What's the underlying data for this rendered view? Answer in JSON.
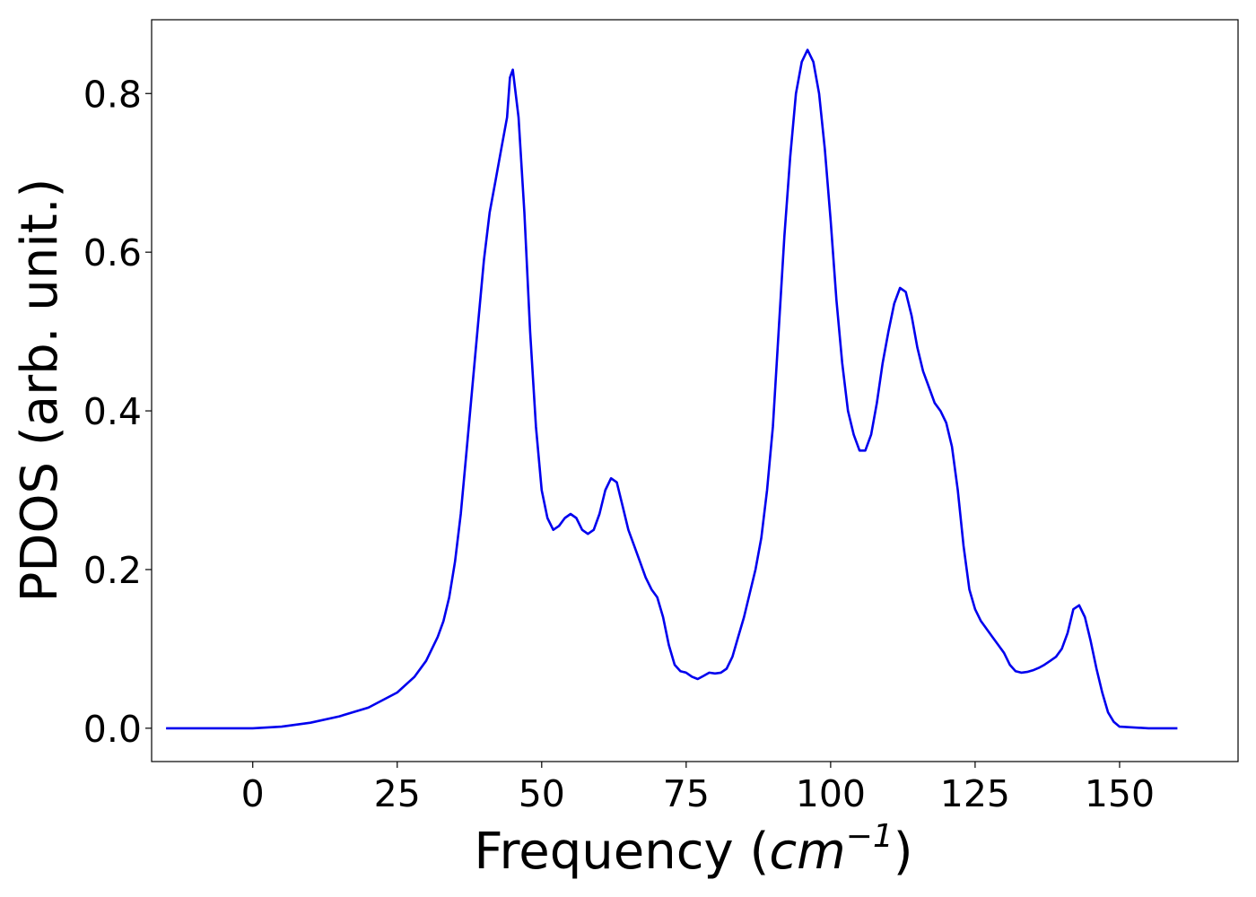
{
  "chart_data": {
    "type": "line",
    "title": "",
    "xlabel": "Frequency (",
    "xlabel_math": "cm",
    "xlabel_sup": "−1",
    "xlabel_end": ")",
    "ylabel": "PDOS (arb. unit.)",
    "xlim": [
      -17.5,
      170.5
    ],
    "ylim": [
      -0.042,
      0.893
    ],
    "xticks": [
      0,
      25,
      50,
      75,
      100,
      125,
      150
    ],
    "yticks": [
      0.0,
      0.2,
      0.4,
      0.6,
      0.8
    ],
    "ytick_labels": [
      "0.0",
      "0.2",
      "0.4",
      "0.6",
      "0.8"
    ],
    "grid": false,
    "legend": "none",
    "series": [
      {
        "color": "#0000ee",
        "x": [
          -15,
          -5,
          0,
          5,
          10,
          15,
          20,
          25,
          28,
          30,
          32,
          33,
          34,
          35,
          36,
          37,
          38,
          39,
          40,
          41,
          42,
          43,
          44,
          44.5,
          45,
          45.5,
          46,
          47,
          48,
          49,
          50,
          51,
          52,
          53,
          54,
          55,
          56,
          57,
          58,
          59,
          60,
          61,
          62,
          63,
          64,
          65,
          66,
          67,
          68,
          69,
          70,
          71,
          72,
          73,
          74,
          75,
          76,
          77,
          78,
          79,
          80,
          81,
          82,
          83,
          84,
          85,
          86,
          87,
          88,
          89,
          90,
          91,
          92,
          93,
          94,
          95,
          96,
          97,
          98,
          99,
          100,
          101,
          102,
          103,
          104,
          105,
          106,
          107,
          108,
          109,
          110,
          111,
          112,
          113,
          114,
          115,
          116,
          117,
          118,
          119,
          120,
          121,
          122,
          123,
          124,
          125,
          126,
          127,
          128,
          129,
          130,
          131,
          132,
          133,
          134,
          135,
          136,
          137,
          138,
          139,
          140,
          141,
          142,
          143,
          144,
          145,
          146,
          147,
          148,
          149,
          150,
          155,
          160
        ],
        "y": [
          0.0,
          0.0,
          0.0,
          0.002,
          0.007,
          0.015,
          0.026,
          0.045,
          0.065,
          0.085,
          0.115,
          0.135,
          0.165,
          0.21,
          0.27,
          0.35,
          0.43,
          0.51,
          0.59,
          0.65,
          0.69,
          0.73,
          0.77,
          0.82,
          0.83,
          0.8,
          0.77,
          0.65,
          0.5,
          0.38,
          0.3,
          0.265,
          0.25,
          0.255,
          0.265,
          0.27,
          0.265,
          0.25,
          0.245,
          0.25,
          0.27,
          0.3,
          0.315,
          0.31,
          0.28,
          0.25,
          0.23,
          0.21,
          0.19,
          0.175,
          0.165,
          0.14,
          0.105,
          0.08,
          0.072,
          0.07,
          0.065,
          0.062,
          0.066,
          0.07,
          0.069,
          0.07,
          0.075,
          0.09,
          0.115,
          0.14,
          0.17,
          0.2,
          0.24,
          0.3,
          0.38,
          0.5,
          0.62,
          0.72,
          0.8,
          0.84,
          0.855,
          0.84,
          0.8,
          0.73,
          0.64,
          0.54,
          0.46,
          0.4,
          0.37,
          0.35,
          0.35,
          0.37,
          0.41,
          0.46,
          0.5,
          0.535,
          0.555,
          0.55,
          0.52,
          0.48,
          0.45,
          0.43,
          0.41,
          0.4,
          0.385,
          0.355,
          0.3,
          0.23,
          0.175,
          0.15,
          0.135,
          0.125,
          0.115,
          0.105,
          0.095,
          0.08,
          0.072,
          0.07,
          0.071,
          0.073,
          0.076,
          0.08,
          0.085,
          0.09,
          0.1,
          0.12,
          0.15,
          0.155,
          0.14,
          0.11,
          0.075,
          0.045,
          0.02,
          0.008,
          0.002,
          0.0,
          0.0
        ]
      }
    ]
  }
}
